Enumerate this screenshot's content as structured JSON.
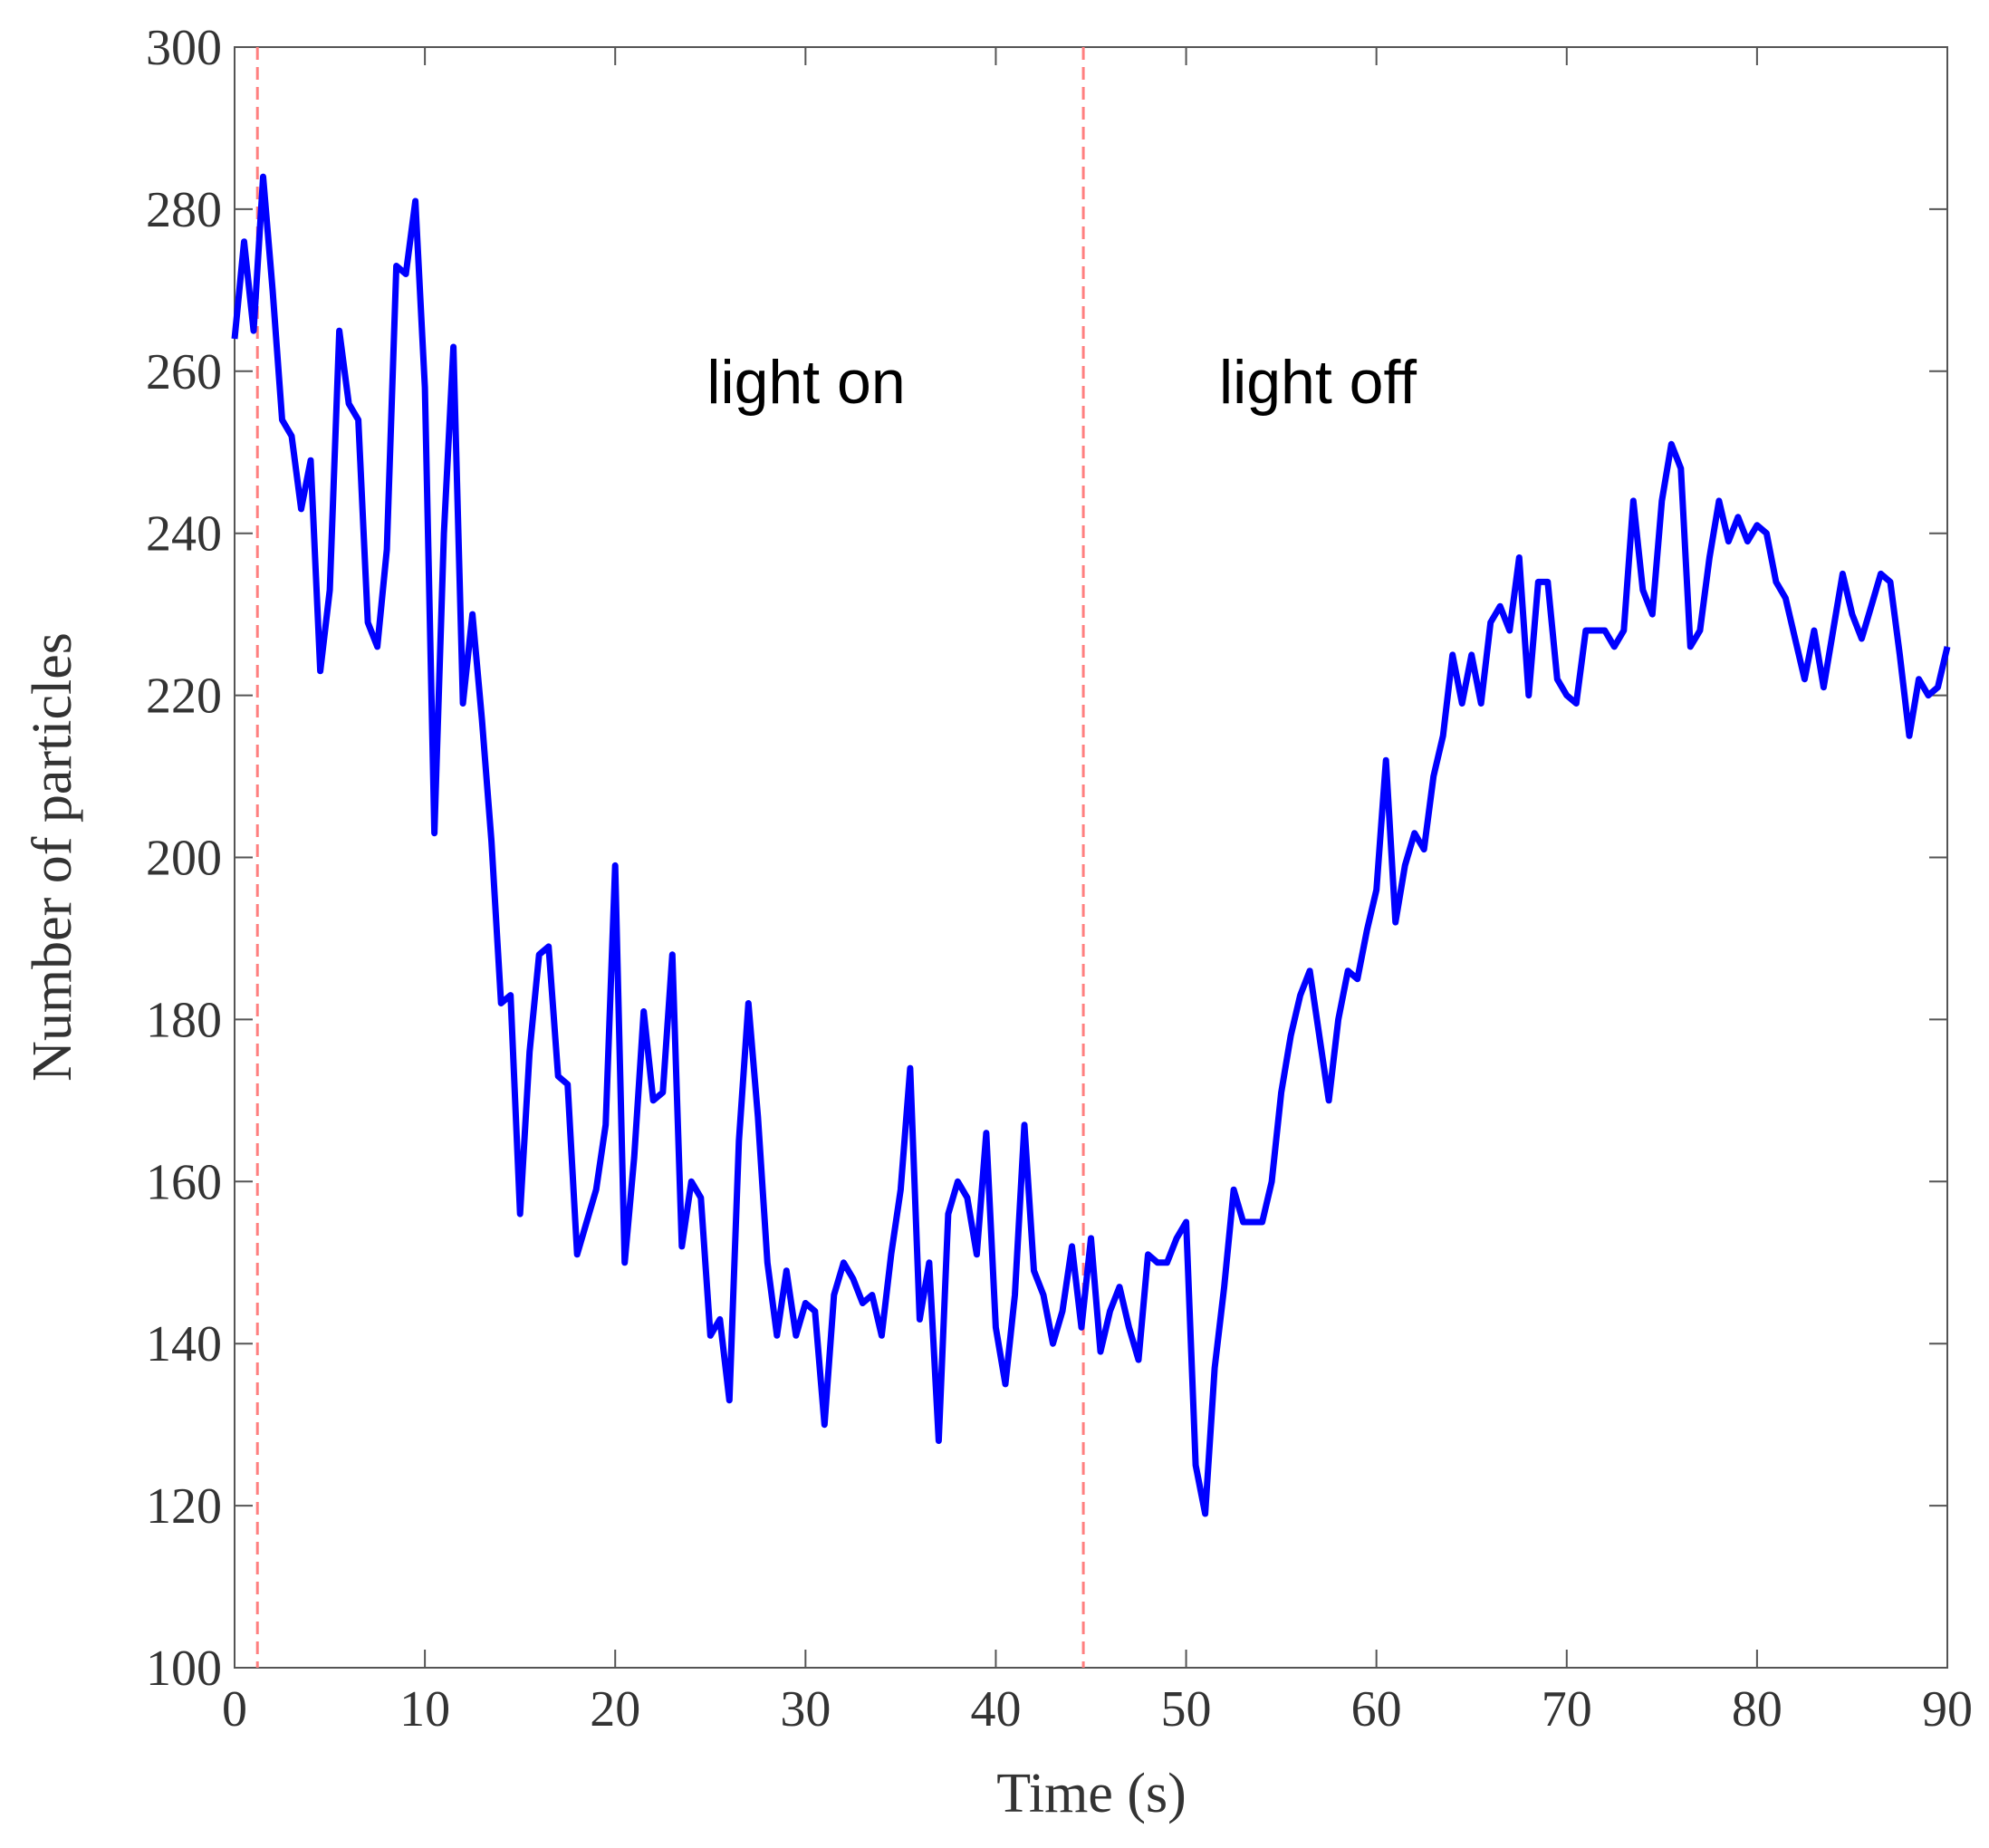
{
  "chart_data": {
    "type": "line",
    "xlabel": "Time (s)",
    "ylabel": "Number of particles",
    "annotations": [
      "light on",
      "light off"
    ],
    "vlines": [
      1.2,
      44.6
    ],
    "vline_color": "#ff7f7f",
    "x": [
      0,
      0.5,
      1,
      1.5,
      2,
      2.5,
      3,
      3.5,
      4,
      4.5,
      5,
      5.5,
      6,
      6.5,
      7,
      7.5,
      8,
      8.5,
      9,
      9.5,
      10,
      10.5,
      11,
      11.5,
      12,
      12.5,
      13,
      13.5,
      14,
      14.5,
      15,
      15.5,
      16,
      16.5,
      17,
      17.5,
      18,
      18.5,
      19,
      19.5,
      20,
      20.5,
      21,
      21.5,
      22,
      22.5,
      23,
      23.5,
      24,
      24.5,
      25,
      25.5,
      26,
      26.5,
      27,
      27.5,
      28,
      28.5,
      29,
      29.5,
      30,
      30.5,
      31,
      31.5,
      32,
      32.5,
      33,
      33.5,
      34,
      34.5,
      35,
      35.5,
      36,
      36.5,
      37,
      37.5,
      38,
      38.5,
      39,
      39.5,
      40,
      40.5,
      41,
      41.5,
      42,
      42.5,
      43,
      43.5,
      44,
      44.5,
      45,
      45.5,
      46,
      46.5,
      47,
      47.5,
      48,
      48.5,
      49,
      49.5,
      50,
      50.5,
      51,
      51.5,
      52,
      52.5,
      53,
      53.5,
      54,
      54.5,
      55,
      55.5,
      56,
      56.5,
      57,
      57.5,
      58,
      58.5,
      59,
      59.5,
      60,
      60.5,
      61,
      61.5,
      62,
      62.5,
      63,
      63.5,
      64,
      64.5,
      65,
      65.5,
      66,
      66.5,
      67,
      67.5,
      68,
      68.5,
      69,
      69.5,
      70,
      70.5,
      71,
      71.5,
      72,
      72.5,
      73,
      73.5,
      74,
      74.5,
      75,
      75.5,
      76,
      76.5,
      77,
      77.5,
      78,
      78.5,
      79,
      79.5,
      80,
      80.5,
      81,
      81.5,
      82,
      82.5,
      83,
      83.5,
      84,
      84.5,
      85,
      85.5,
      86,
      86.5,
      87,
      87.5,
      88,
      88.5,
      89,
      89.5,
      90
    ],
    "series": [
      {
        "color": "#0000ff",
        "values": [
          264,
          276,
          265,
          284,
          270,
          254,
          252,
          243,
          249,
          223,
          233,
          265,
          256,
          254,
          229,
          226,
          238,
          273,
          272,
          281,
          258,
          203,
          240,
          263,
          219,
          230,
          217,
          202,
          182,
          183,
          156,
          176,
          188,
          189,
          173,
          172,
          151,
          155,
          159,
          167,
          199,
          150,
          163,
          181,
          170,
          171,
          188,
          152,
          160,
          158,
          141,
          143,
          133,
          165,
          182,
          168,
          150,
          141,
          149,
          141,
          145,
          144,
          130,
          146,
          150,
          148,
          145,
          146,
          141,
          151,
          159,
          174,
          143,
          150,
          128,
          156,
          160,
          158,
          151,
          166,
          142,
          135,
          146,
          167,
          149,
          146,
          140,
          144,
          152,
          142,
          153,
          139,
          144,
          147,
          142,
          138,
          151,
          150,
          150,
          153,
          155,
          125,
          119,
          137,
          147,
          159,
          155,
          155,
          155,
          160,
          171,
          178,
          183,
          186,
          178,
          170,
          180,
          186,
          185,
          191,
          196,
          212,
          192,
          199,
          203,
          201,
          210,
          215,
          225,
          219,
          225,
          219,
          229,
          231,
          228,
          237,
          220,
          234,
          234,
          222,
          220,
          219,
          228,
          228,
          228,
          226,
          228,
          244,
          233,
          230,
          244,
          251,
          248,
          226,
          228,
          237,
          244,
          239,
          242,
          239,
          241,
          240,
          234,
          232,
          227,
          222,
          228,
          221,
          228,
          235,
          230,
          227,
          231,
          235,
          234,
          225,
          215,
          222,
          220,
          221,
          226
        ]
      }
    ],
    "xlim": [
      0,
      90
    ],
    "xticks": [
      0,
      10,
      20,
      30,
      40,
      50,
      60,
      70,
      80,
      90
    ],
    "ylim": [
      100,
      300
    ],
    "yticks": [
      100,
      120,
      140,
      160,
      180,
      200,
      220,
      240,
      260,
      280,
      300
    ]
  }
}
